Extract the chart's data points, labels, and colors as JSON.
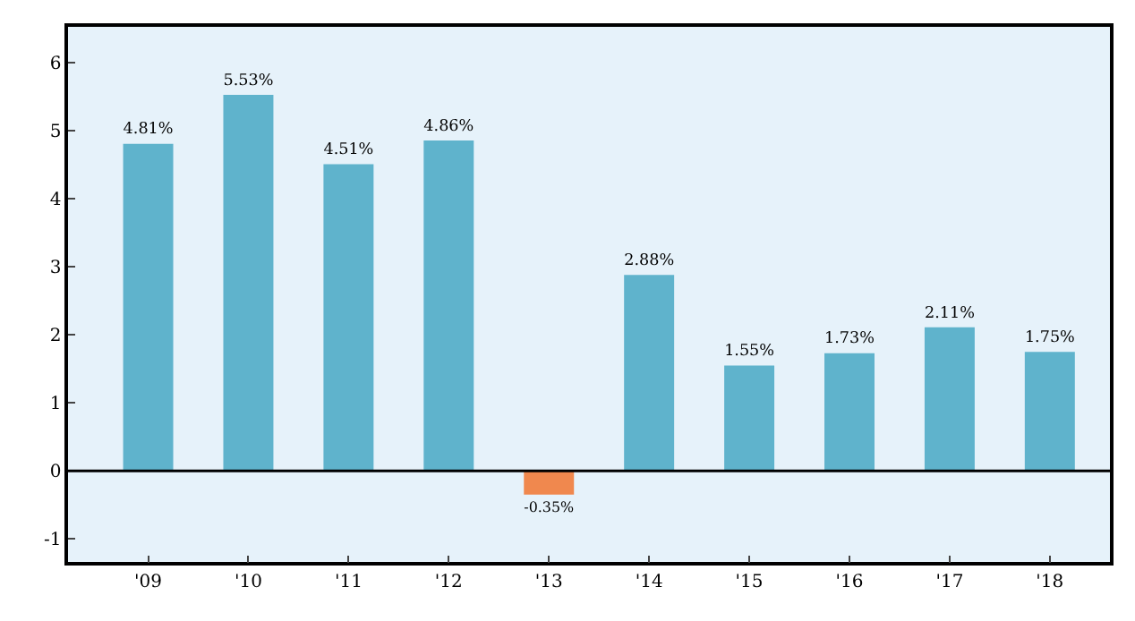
{
  "chart_data": {
    "type": "bar",
    "categories": [
      "'09",
      "'10",
      "'11",
      "'12",
      "'13",
      "'14",
      "'15",
      "'16",
      "'17",
      "'18"
    ],
    "values": [
      4.81,
      5.53,
      4.51,
      4.86,
      -0.35,
      2.88,
      1.55,
      1.73,
      2.11,
      1.75
    ],
    "colors": [
      "#5fb3cc",
      "#5fb3cc",
      "#5fb3cc",
      "#5fb3cc",
      "#f0884e",
      "#5fb3cc",
      "#5fb3cc",
      "#5fb3cc",
      "#5fb3cc",
      "#5fb3cc"
    ],
    "value_labels": [
      "4.81%",
      "5.53%",
      "4.51%",
      "4.86%",
      "-0.35%",
      "2.88%",
      "1.55%",
      "1.73%",
      "2.11%",
      "1.75%"
    ],
    "ylim": [
      -1.34,
      6.53
    ],
    "yticks": [
      -1,
      0,
      1,
      2,
      3,
      4,
      5,
      6
    ],
    "ref_lines": [
      {
        "axis": "y",
        "value": 0,
        "color": "#000000"
      }
    ],
    "grid": false,
    "legend": false
  }
}
